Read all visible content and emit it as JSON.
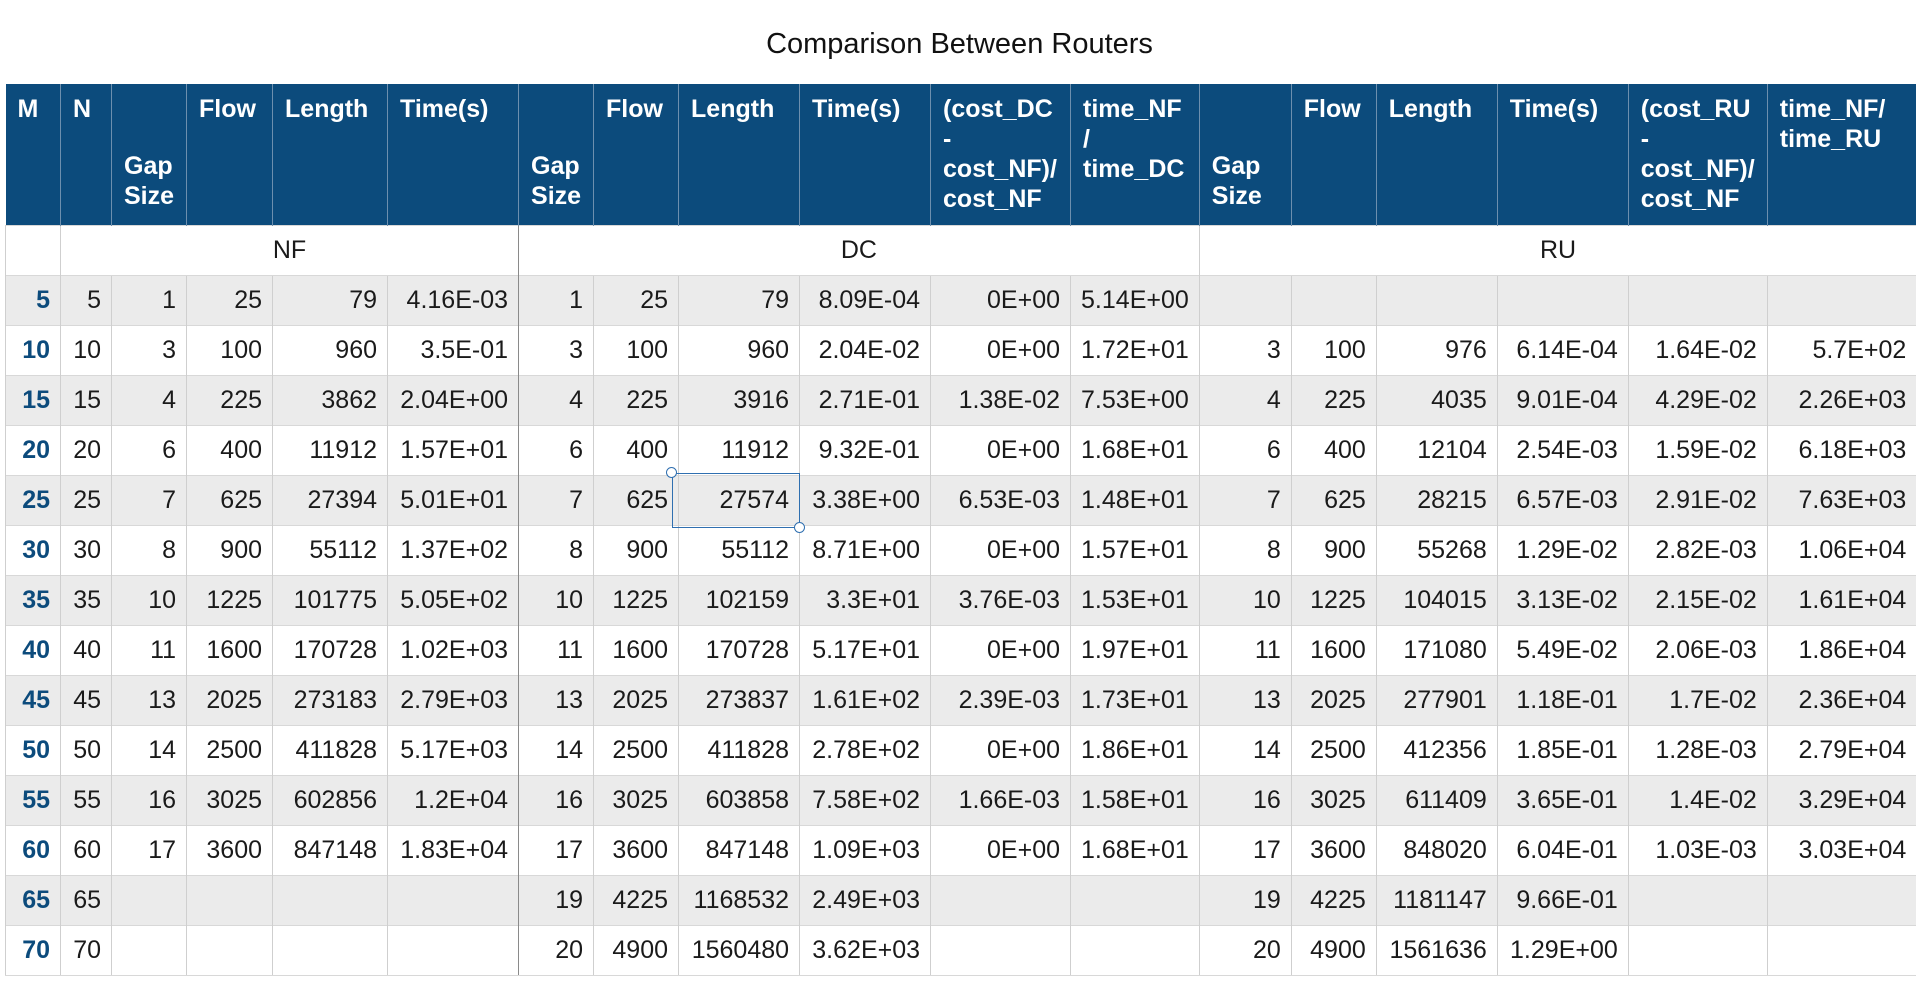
{
  "title": "Comparison Between Routers",
  "colors": {
    "header_bg": "#0c4b7c",
    "header_text": "#ffffff",
    "m_text": "#0c4b7c",
    "shaded_row": "#ebebeb",
    "selection": "#2f6fb0"
  },
  "headers": [
    "M",
    "N",
    "Gap Size",
    "Flow",
    "Length",
    "Time(s)",
    "Gap Size",
    "Flow",
    "Length",
    "Time(s)",
    "(cost_DC - cost_NF)/ cost_NF",
    "time_NF / time_DC",
    "Gap Size",
    "Flow",
    "Length",
    "Time(s)",
    "(cost_RU - cost_NF)/ cost_NF",
    "time_NF/ time_RU"
  ],
  "groups": {
    "nf": "NF",
    "dc": "DC",
    "ru": "RU"
  },
  "selected_cell": {
    "row": 4,
    "col": 8,
    "value": "27574"
  },
  "rows": [
    [
      "5",
      "5",
      "1",
      "25",
      "79",
      "4.16E-03",
      "1",
      "25",
      "79",
      "8.09E-04",
      "0E+00",
      "5.14E+00",
      "",
      "",
      "",
      "",
      "",
      ""
    ],
    [
      "10",
      "10",
      "3",
      "100",
      "960",
      "3.5E-01",
      "3",
      "100",
      "960",
      "2.04E-02",
      "0E+00",
      "1.72E+01",
      "3",
      "100",
      "976",
      "6.14E-04",
      "1.64E-02",
      "5.7E+02"
    ],
    [
      "15",
      "15",
      "4",
      "225",
      "3862",
      "2.04E+00",
      "4",
      "225",
      "3916",
      "2.71E-01",
      "1.38E-02",
      "7.53E+00",
      "4",
      "225",
      "4035",
      "9.01E-04",
      "4.29E-02",
      "2.26E+03"
    ],
    [
      "20",
      "20",
      "6",
      "400",
      "11912",
      "1.57E+01",
      "6",
      "400",
      "11912",
      "9.32E-01",
      "0E+00",
      "1.68E+01",
      "6",
      "400",
      "12104",
      "2.54E-03",
      "1.59E-02",
      "6.18E+03"
    ],
    [
      "25",
      "25",
      "7",
      "625",
      "27394",
      "5.01E+01",
      "7",
      "625",
      "27574",
      "3.38E+00",
      "6.53E-03",
      "1.48E+01",
      "7",
      "625",
      "28215",
      "6.57E-03",
      "2.91E-02",
      "7.63E+03"
    ],
    [
      "30",
      "30",
      "8",
      "900",
      "55112",
      "1.37E+02",
      "8",
      "900",
      "55112",
      "8.71E+00",
      "0E+00",
      "1.57E+01",
      "8",
      "900",
      "55268",
      "1.29E-02",
      "2.82E-03",
      "1.06E+04"
    ],
    [
      "35",
      "35",
      "10",
      "1225",
      "101775",
      "5.05E+02",
      "10",
      "1225",
      "102159",
      "3.3E+01",
      "3.76E-03",
      "1.53E+01",
      "10",
      "1225",
      "104015",
      "3.13E-02",
      "2.15E-02",
      "1.61E+04"
    ],
    [
      "40",
      "40",
      "11",
      "1600",
      "170728",
      "1.02E+03",
      "11",
      "1600",
      "170728",
      "5.17E+01",
      "0E+00",
      "1.97E+01",
      "11",
      "1600",
      "171080",
      "5.49E-02",
      "2.06E-03",
      "1.86E+04"
    ],
    [
      "45",
      "45",
      "13",
      "2025",
      "273183",
      "2.79E+03",
      "13",
      "2025",
      "273837",
      "1.61E+02",
      "2.39E-03",
      "1.73E+01",
      "13",
      "2025",
      "277901",
      "1.18E-01",
      "1.7E-02",
      "2.36E+04"
    ],
    [
      "50",
      "50",
      "14",
      "2500",
      "411828",
      "5.17E+03",
      "14",
      "2500",
      "411828",
      "2.78E+02",
      "0E+00",
      "1.86E+01",
      "14",
      "2500",
      "412356",
      "1.85E-01",
      "1.28E-03",
      "2.79E+04"
    ],
    [
      "55",
      "55",
      "16",
      "3025",
      "602856",
      "1.2E+04",
      "16",
      "3025",
      "603858",
      "7.58E+02",
      "1.66E-03",
      "1.58E+01",
      "16",
      "3025",
      "611409",
      "3.65E-01",
      "1.4E-02",
      "3.29E+04"
    ],
    [
      "60",
      "60",
      "17",
      "3600",
      "847148",
      "1.83E+04",
      "17",
      "3600",
      "847148",
      "1.09E+03",
      "0E+00",
      "1.68E+01",
      "17",
      "3600",
      "848020",
      "6.04E-01",
      "1.03E-03",
      "3.03E+04"
    ],
    [
      "65",
      "65",
      "",
      "",
      "",
      "",
      "19",
      "4225",
      "1168532",
      "2.49E+03",
      "",
      "",
      "19",
      "4225",
      "1181147",
      "9.66E-01",
      "",
      ""
    ],
    [
      "70",
      "70",
      "",
      "",
      "",
      "",
      "20",
      "4900",
      "1560480",
      "3.62E+03",
      "",
      "",
      "20",
      "4900",
      "1561636",
      "1.29E+00",
      "",
      ""
    ]
  ]
}
